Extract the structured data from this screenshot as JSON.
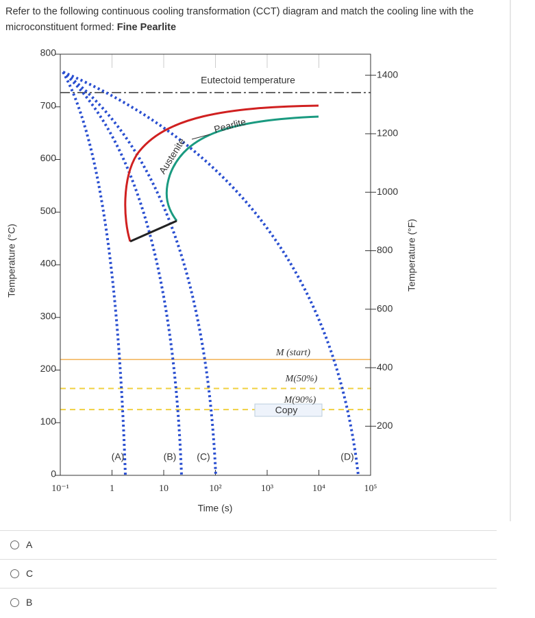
{
  "question": {
    "text": "Refer to the following continuous cooling transformation (CCT) diagram and match the cooling line with the microconstituent formed:",
    "emphasis": "Fine Pearlite"
  },
  "chart_data": {
    "type": "cct",
    "xlabel": "Time (s)",
    "ylabel": "Temperature (°C)",
    "y2label": "Temperature (°F)",
    "xlim": [
      0.1,
      100000
    ],
    "xlog": true,
    "xticks": [
      {
        "value": 0.1,
        "label": "10⁻¹"
      },
      1,
      10,
      {
        "value": 100,
        "label": "10²"
      },
      {
        "value": 1000,
        "label": "10³"
      },
      {
        "value": 10000,
        "label": "10⁴"
      },
      {
        "value": 100000,
        "label": "10⁵"
      }
    ],
    "ylim": [
      0,
      800
    ],
    "yticks": [
      0,
      100,
      200,
      300,
      400,
      500,
      600,
      700,
      800
    ],
    "y2lim": [
      32,
      1472
    ],
    "y2ticks": [
      200,
      400,
      600,
      800,
      1000,
      1200,
      1400
    ],
    "grid": false,
    "lines": [
      {
        "name": "Eutectoid temperature",
        "value": 727,
        "color": "#333333"
      },
      {
        "name": "M (start)",
        "value": 220,
        "color": "#f0a030"
      },
      {
        "name": "M(50%)",
        "value": 165,
        "color": "#f0d040"
      },
      {
        "name": "M(90%)",
        "value": 125,
        "color": "#f0d040"
      }
    ],
    "regions": [
      "Austenite",
      "Pearlite"
    ],
    "cooling_lines": [
      "(A)",
      "(B)",
      "(C)",
      "(D)"
    ],
    "button": "Copy"
  },
  "options": [
    "A",
    "C",
    "B"
  ]
}
